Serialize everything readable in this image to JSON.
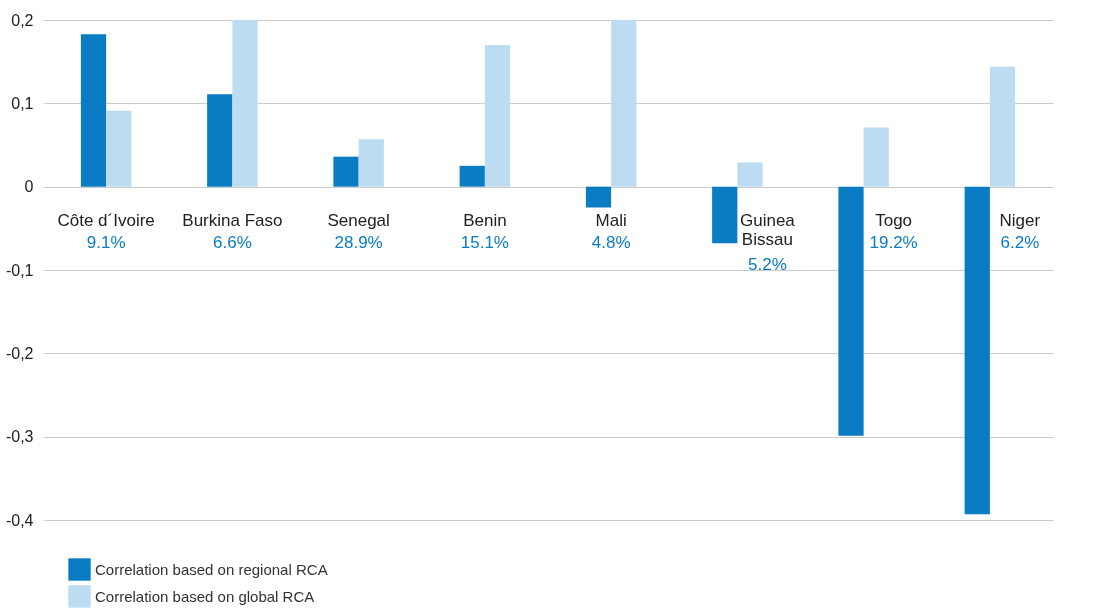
{
  "chart_data": {
    "type": "bar",
    "categories": [
      "Côte d´Ivoire",
      "Burkina Faso",
      "Senegal",
      "Benin",
      "Mali",
      "Guinea\nBissau",
      "Togo",
      "Niger"
    ],
    "series": [
      {
        "name": "Correlation based on regional RCA",
        "color": "#0a7cc4",
        "values": [
          0.183,
          0.111,
          0.036,
          0.025,
          -0.025,
          -0.068,
          -0.299,
          -0.393
        ]
      },
      {
        "name": "Correlation based on global RCA",
        "color": "#bcdcf2",
        "values": [
          0.091,
          0.2,
          0.057,
          0.17,
          0.2,
          0.029,
          0.071,
          0.144
        ]
      }
    ],
    "ylim": [
      -0.4,
      0.2
    ],
    "yticks": [
      {
        "value": 0.2,
        "label": "0,2"
      },
      {
        "value": 0.1,
        "label": "0,1"
      },
      0,
      {
        "value": -0.1,
        "label": "-0,1"
      },
      {
        "value": -0.2,
        "label": "-0,2"
      },
      {
        "value": -0.3,
        "label": "-0,3"
      },
      {
        "value": -0.4,
        "label": "-0,4"
      }
    ],
    "annotations": [
      "9.1%",
      "6.6%",
      "28.9%",
      "15.1%",
      "4.8%",
      "5.2%",
      "19.2%",
      "6.2%"
    ],
    "grid": "y",
    "legend": "bottom left"
  }
}
